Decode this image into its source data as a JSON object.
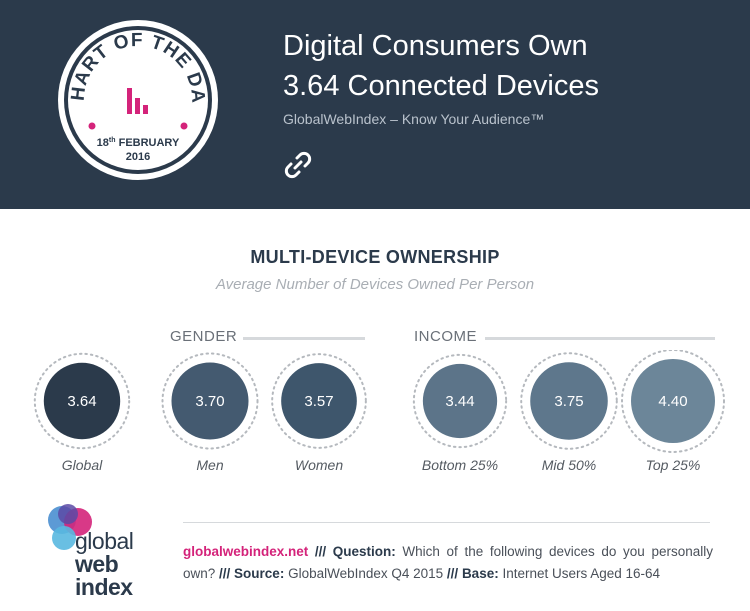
{
  "header": {
    "badge_arc_text": "CHART OF THE DAY",
    "badge_date_day": "18",
    "badge_date_suffix": "th",
    "badge_date_month": "FEBRUARY",
    "badge_date_year": "2016",
    "title_line1": "Digital Consumers Own",
    "title_line2": "3.64 Connected Devices",
    "subtitle": "GlobalWebIndex – Know Your Audience™",
    "link_icon": "link-icon"
  },
  "groups": {
    "gender": "GENDER",
    "income": "INCOME"
  },
  "chart_data": {
    "type": "bubble",
    "title": "MULTI-DEVICE OWNERSHIP",
    "subtitle": "Average Number of Devices Owned Per Person",
    "categories": [
      "Global",
      "Men",
      "Women",
      "Bottom 25%",
      "Mid 50%",
      "Top 25%"
    ],
    "values": [
      3.64,
      3.7,
      3.57,
      3.44,
      3.75,
      4.4
    ],
    "groups": [
      {
        "name": "",
        "categories": [
          "Global"
        ]
      },
      {
        "name": "GENDER",
        "categories": [
          "Men",
          "Women"
        ]
      },
      {
        "name": "INCOME",
        "categories": [
          "Bottom 25%",
          "Mid 50%",
          "Top 25%"
        ]
      }
    ],
    "colors": [
      "#2b3a4b",
      "#445a70",
      "#3e566c",
      "#5c7489",
      "#5e778c",
      "#6c8699"
    ]
  },
  "footer": {
    "logo_line1": "global",
    "logo_line2": "web",
    "logo_line3": "index",
    "site": "globalwebindex.net",
    "sep1": " /// ",
    "question_label": "Question:",
    "question_text": " Which of the following devices do you personally own?",
    "sep2": " /// ",
    "source_label": "Source:",
    "source_text": " GlobalWebIndex Q4 2015",
    "sep3": " /// ",
    "base_label": "Base:",
    "base_text": " Internet Users Aged 16-64"
  },
  "colors": {
    "header_bg": "#2b3a4b",
    "accent_pink": "#d4237a",
    "accent_blue": "#4a8fd0",
    "accent_purple": "#5a4aa6"
  }
}
